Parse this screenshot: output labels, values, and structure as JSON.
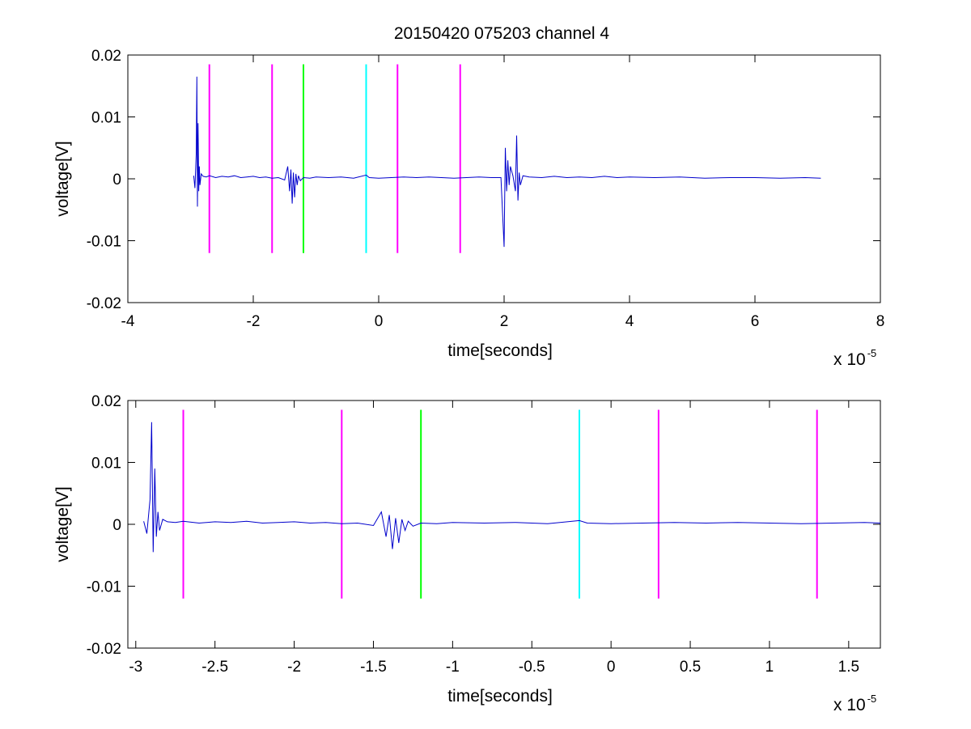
{
  "chart_data": [
    {
      "type": "line",
      "title": "20150420 075203 channel 4",
      "xlabel": "time[seconds]",
      "ylabel": "voltage[V]",
      "x_multiplier_label": "x 10",
      "x_multiplier_exponent": "-5",
      "x_multiplier": 1e-05,
      "xlim": [
        -4,
        8
      ],
      "ylim": [
        -0.02,
        0.02
      ],
      "xticks": [
        -4,
        -2,
        0,
        2,
        4,
        6,
        8
      ],
      "xtick_labels": [
        "-4",
        "-2",
        "0",
        "2",
        "4",
        "6",
        "8"
      ],
      "yticks": [
        -0.02,
        -0.01,
        0,
        0.01,
        0.02
      ],
      "ytick_labels": [
        "-0.02",
        "-0.01",
        "0",
        "0.01",
        "0.02"
      ],
      "grid": false,
      "series": [
        {
          "color": "#0000cc",
          "x": [
            -2.95,
            -2.93,
            -2.91,
            -2.9,
            -2.89,
            -2.88,
            -2.87,
            -2.86,
            -2.85,
            -2.83,
            -2.8,
            -2.75,
            -2.7,
            -2.6,
            -2.5,
            -2.4,
            -2.3,
            -2.2,
            -2.1,
            -2.0,
            -1.9,
            -1.8,
            -1.7,
            -1.6,
            -1.5,
            -1.45,
            -1.42,
            -1.4,
            -1.38,
            -1.36,
            -1.34,
            -1.32,
            -1.3,
            -1.28,
            -1.25,
            -1.2,
            -1.1,
            -1.0,
            -0.8,
            -0.6,
            -0.4,
            -0.2,
            -0.15,
            0.0,
            0.2,
            0.4,
            0.6,
            0.8,
            1.0,
            1.2,
            1.4,
            1.6,
            1.8,
            1.95,
            2.0,
            2.02,
            2.04,
            2.06,
            2.08,
            2.1,
            2.14,
            2.18,
            2.2,
            2.22,
            2.24,
            2.26,
            2.3,
            2.4,
            2.6,
            2.8,
            3.0,
            3.2,
            3.4,
            3.6,
            3.8,
            4.0,
            4.4,
            4.8,
            5.2,
            5.6,
            6.0,
            6.4,
            6.8,
            7.05
          ],
          "y": [
            0.0005,
            -0.0015,
            0.004,
            0.0165,
            -0.0045,
            0.009,
            -0.002,
            0.002,
            -0.001,
            0.0008,
            0.0004,
            0.0003,
            0.0005,
            0.0002,
            0.0004,
            0.0003,
            0.0005,
            0.0002,
            0.0003,
            0.0004,
            0.0002,
            0.0003,
            0.0001,
            0.0002,
            -0.0002,
            0.002,
            -0.002,
            0.0015,
            -0.004,
            0.001,
            -0.003,
            0.0008,
            -0.001,
            0.0005,
            -0.0003,
            0.0002,
            0.0001,
            0.0003,
            0.0002,
            0.0003,
            0.0001,
            0.0006,
            0.0002,
            0.0001,
            0.0002,
            0.0003,
            0.0002,
            0.0003,
            0.0002,
            0.0001,
            0.0002,
            0.0003,
            0.0002,
            0.0002,
            -0.011,
            0.005,
            -0.002,
            0.003,
            -0.001,
            0.002,
            0.0005,
            -0.002,
            0.007,
            -0.0035,
            0.001,
            -0.001,
            0.0005,
            0.0003,
            0.0002,
            0.0004,
            0.0002,
            0.0003,
            0.0002,
            0.0004,
            0.0002,
            0.0003,
            0.0002,
            0.0003,
            0.0001,
            0.0002,
            0.0002,
            0.0001,
            0.0002,
            0.0001
          ]
        }
      ],
      "markers": [
        {
          "x": -2.7,
          "color": "#ff00ff"
        },
        {
          "x": -1.7,
          "color": "#ff00ff"
        },
        {
          "x": -1.2,
          "color": "#00ff00"
        },
        {
          "x": -0.2,
          "color": "#00ffff"
        },
        {
          "x": 0.3,
          "color": "#ff00ff"
        },
        {
          "x": 1.3,
          "color": "#ff00ff"
        }
      ],
      "marker_ylim": [
        -0.012,
        0.0185
      ]
    },
    {
      "type": "line",
      "title": "",
      "xlabel": "time[seconds]",
      "ylabel": "voltage[V]",
      "x_multiplier_label": "x 10",
      "x_multiplier_exponent": "-5",
      "x_multiplier": 1e-05,
      "xlim": [
        -3.05,
        1.7
      ],
      "ylim": [
        -0.02,
        0.02
      ],
      "xticks": [
        -3,
        -2.5,
        -2,
        -1.5,
        -1,
        -0.5,
        0,
        0.5,
        1,
        1.5
      ],
      "xtick_labels": [
        "-3",
        "-2.5",
        "-2",
        "-1.5",
        "-1",
        "-0.5",
        "0",
        "0.5",
        "1",
        "1.5"
      ],
      "yticks": [
        -0.02,
        -0.01,
        0,
        0.01,
        0.02
      ],
      "ytick_labels": [
        "-0.02",
        "-0.01",
        "0",
        "0.01",
        "0.02"
      ],
      "grid": false,
      "series": [
        {
          "color": "#0000cc",
          "x": [
            -2.95,
            -2.93,
            -2.91,
            -2.9,
            -2.89,
            -2.88,
            -2.87,
            -2.86,
            -2.85,
            -2.83,
            -2.8,
            -2.75,
            -2.7,
            -2.6,
            -2.5,
            -2.4,
            -2.3,
            -2.2,
            -2.1,
            -2.0,
            -1.9,
            -1.8,
            -1.7,
            -1.6,
            -1.5,
            -1.45,
            -1.42,
            -1.4,
            -1.38,
            -1.36,
            -1.34,
            -1.32,
            -1.3,
            -1.28,
            -1.25,
            -1.2,
            -1.1,
            -1.0,
            -0.8,
            -0.6,
            -0.4,
            -0.2,
            -0.15,
            0.0,
            0.2,
            0.4,
            0.6,
            0.8,
            1.0,
            1.2,
            1.4,
            1.6,
            1.7
          ],
          "y": [
            0.0005,
            -0.0015,
            0.004,
            0.0165,
            -0.0045,
            0.009,
            -0.002,
            0.002,
            -0.001,
            0.0008,
            0.0004,
            0.0003,
            0.0005,
            0.0002,
            0.0004,
            0.0003,
            0.0005,
            0.0002,
            0.0003,
            0.0004,
            0.0002,
            0.0003,
            0.0001,
            0.0002,
            -0.0002,
            0.002,
            -0.002,
            0.0015,
            -0.004,
            0.001,
            -0.003,
            0.0008,
            -0.001,
            0.0005,
            -0.0003,
            0.0002,
            0.0001,
            0.0003,
            0.0002,
            0.0003,
            0.0001,
            0.0006,
            0.0002,
            0.0001,
            0.0002,
            0.0003,
            0.0002,
            0.0003,
            0.0002,
            0.0001,
            0.0002,
            0.0003,
            0.0002
          ]
        }
      ],
      "markers": [
        {
          "x": -2.7,
          "color": "#ff00ff"
        },
        {
          "x": -1.7,
          "color": "#ff00ff"
        },
        {
          "x": -1.2,
          "color": "#00ff00"
        },
        {
          "x": -0.2,
          "color": "#00ffff"
        },
        {
          "x": 0.3,
          "color": "#ff00ff"
        },
        {
          "x": 1.3,
          "color": "#ff00ff"
        }
      ],
      "marker_ylim": [
        -0.012,
        0.0185
      ]
    }
  ]
}
